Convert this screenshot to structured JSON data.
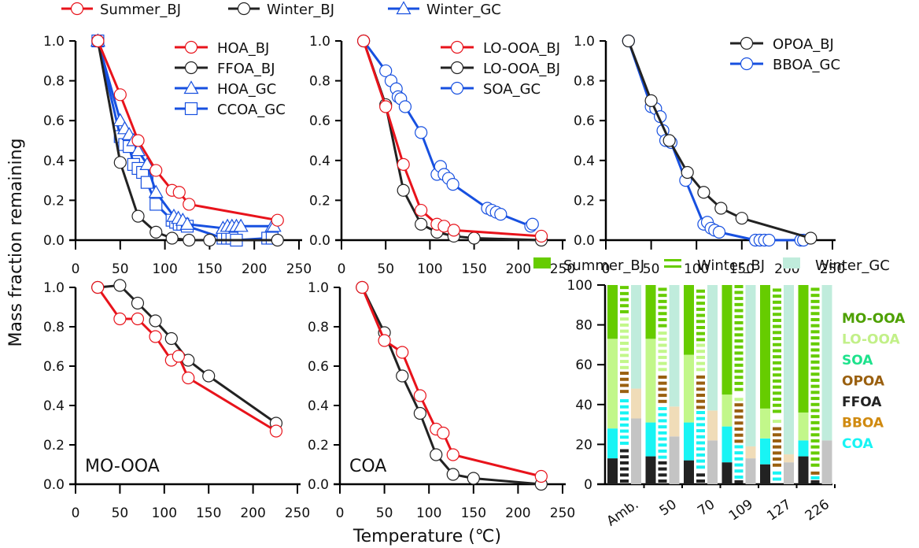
{
  "chart_data": {
    "type": "line",
    "ylabel": "Mass fraction remaining",
    "xlabel": "Temperature (℃)",
    "top_legend": [
      {
        "name": "Summer_BJ",
        "color": "#e8131b",
        "marker": "circle"
      },
      {
        "name": "Winter_BJ",
        "color": "#222222",
        "marker": "circle"
      },
      {
        "name": "Winter_GC",
        "color": "#1750e0",
        "marker": "triangle"
      }
    ],
    "panels": [
      {
        "id": "p1",
        "label": "",
        "xlim": [
          0,
          250
        ],
        "ylim": [
          0,
          1
        ],
        "xticks": [
          0,
          50,
          100,
          150,
          200,
          250
        ],
        "yticks": [
          "0.0",
          "0.2",
          "0.4",
          "0.6",
          "0.8",
          "1.0"
        ],
        "legend": "top-right",
        "series": [
          {
            "name": "HOA_BJ",
            "color": "#e8131b",
            "marker": "circle",
            "x": [
              25,
              50,
              70,
              90,
              108,
              116,
              127,
              226
            ],
            "y": [
              1.0,
              0.73,
              0.5,
              0.35,
              0.25,
              0.24,
              0.18,
              0.1
            ]
          },
          {
            "name": "FFOA_BJ",
            "color": "#222222",
            "marker": "circle",
            "x": [
              25,
              50,
              70,
              90,
              108,
              127,
              150,
              226
            ],
            "y": [
              1.0,
              0.39,
              0.12,
              0.04,
              0.01,
              0.0,
              0.0,
              0.0
            ]
          },
          {
            "name": "HOA_GC",
            "color": "#1750e0",
            "marker": "triangle",
            "x": [
              25,
              50,
              55,
              60,
              65,
              70,
              80,
              90,
              110,
              115,
              120,
              125,
              165,
              170,
              175,
              180,
              185,
              220,
              222
            ],
            "y": [
              1.0,
              0.6,
              0.56,
              0.53,
              0.5,
              0.45,
              0.38,
              0.24,
              0.12,
              0.11,
              0.1,
              0.08,
              0.06,
              0.07,
              0.07,
              0.07,
              0.07,
              0.07,
              0.07
            ]
          },
          {
            "name": "CCOA_GC",
            "color": "#1750e0",
            "marker": "square",
            "x": [
              25,
              50,
              55,
              60,
              65,
              70,
              75,
              80,
              90,
              108,
              112,
              116,
              120,
              125,
              165,
              170,
              175,
              180,
              215,
              220
            ],
            "y": [
              1.0,
              0.52,
              0.48,
              0.47,
              0.38,
              0.36,
              0.34,
              0.29,
              0.18,
              0.1,
              0.09,
              0.08,
              0.08,
              0.07,
              0.01,
              0.01,
              0.01,
              0.0,
              0.01,
              0.01
            ]
          }
        ]
      },
      {
        "id": "p2",
        "label": "",
        "xlim": [
          0,
          250
        ],
        "ylim": [
          0,
          1
        ],
        "xticks": [
          0,
          50,
          100,
          150,
          200,
          250
        ],
        "yticks": [
          "0.0",
          "0.2",
          "0.4",
          "0.6",
          "0.8",
          "1.0"
        ],
        "legend": "top-right",
        "series": [
          {
            "name": "LO-OOA_BJ",
            "color": "#e8131b",
            "marker": "circle",
            "x": [
              25,
              50,
              70,
              90,
              108,
              116,
              127,
              226
            ],
            "y": [
              1.0,
              0.67,
              0.38,
              0.15,
              0.08,
              0.07,
              0.05,
              0.02
            ]
          },
          {
            "name": "LO-OOA_BJ",
            "color": "#222222",
            "marker": "circle",
            "x": [
              25,
              50,
              70,
              90,
              108,
              127,
              150,
              226
            ],
            "y": [
              1.0,
              0.68,
              0.25,
              0.08,
              0.04,
              0.02,
              0.01,
              0.0
            ]
          },
          {
            "name": "SOA_GC",
            "color": "#1750e0",
            "marker": "circle",
            "x": [
              25,
              50,
              56,
              62,
              64,
              67,
              72,
              90,
              108,
              112,
              116,
              121,
              126,
              165,
              170,
              175,
              180,
              214,
              216
            ],
            "y": [
              1.0,
              0.85,
              0.8,
              0.76,
              0.72,
              0.71,
              0.67,
              0.54,
              0.33,
              0.37,
              0.33,
              0.31,
              0.28,
              0.16,
              0.15,
              0.14,
              0.13,
              0.07,
              0.08
            ]
          }
        ]
      },
      {
        "id": "p3",
        "label": "",
        "xlim": [
          0,
          250
        ],
        "ylim": [
          0,
          1
        ],
        "xticks": [
          0,
          50,
          100,
          150,
          200,
          250
        ],
        "yticks": [
          "0.0",
          "0.2",
          "0.4",
          "0.6",
          "0.8",
          "1.0"
        ],
        "legend": "top-right",
        "series": [
          {
            "name": "OPOA_BJ",
            "color": "#222222",
            "marker": "circle",
            "x": [
              25,
              50,
              70,
              90,
              108,
              127,
              150,
              226
            ],
            "y": [
              1.0,
              0.7,
              0.5,
              0.34,
              0.24,
              0.16,
              0.11,
              0.01
            ]
          },
          {
            "name": "BBOA_GC",
            "color": "#1750e0",
            "marker": "circle",
            "x": [
              25,
              50,
              55,
              60,
              63,
              66,
              72,
              88,
              108,
              112,
              116,
              120,
              125,
              165,
              170,
              175,
              180,
              215,
              218
            ],
            "y": [
              1.0,
              0.67,
              0.66,
              0.62,
              0.55,
              0.5,
              0.49,
              0.3,
              0.08,
              0.09,
              0.06,
              0.05,
              0.04,
              0.0,
              0.0,
              0.0,
              0.0,
              0.0,
              0.0
            ]
          }
        ]
      },
      {
        "id": "p4",
        "label": "MO-OOA",
        "xlim": [
          0,
          250
        ],
        "ylim": [
          0,
          1
        ],
        "xticks": [
          0,
          50,
          100,
          150,
          200,
          250
        ],
        "yticks": [
          "0.0",
          "0.2",
          "0.4",
          "0.6",
          "0.8",
          "1.0"
        ],
        "legend": "none",
        "series": [
          {
            "name": "MO-OOA_Summer_BJ",
            "color": "#e8131b",
            "marker": "circle",
            "x": [
              25,
              50,
              70,
              90,
              108,
              116,
              127,
              226
            ],
            "y": [
              1.0,
              0.84,
              0.84,
              0.75,
              0.63,
              0.65,
              0.54,
              0.27
            ]
          },
          {
            "name": "MO-OOA_Winter_BJ",
            "color": "#222222",
            "marker": "circle",
            "x": [
              25,
              50,
              70,
              90,
              108,
              127,
              150,
              226
            ],
            "y": [
              1.0,
              1.01,
              0.92,
              0.83,
              0.74,
              0.63,
              0.55,
              0.31
            ]
          }
        ]
      },
      {
        "id": "p5",
        "label": "COA",
        "xlim": [
          0,
          250
        ],
        "ylim": [
          0,
          1
        ],
        "xticks": [
          0,
          50,
          100,
          150,
          200,
          250
        ],
        "yticks": [
          "0.0",
          "0.2",
          "0.4",
          "0.6",
          "0.8",
          "1.0"
        ],
        "legend": "none",
        "series": [
          {
            "name": "COA_Summer_BJ",
            "color": "#e8131b",
            "marker": "circle",
            "x": [
              25,
              50,
              70,
              90,
              108,
              116,
              127,
              226
            ],
            "y": [
              1.0,
              0.73,
              0.67,
              0.45,
              0.28,
              0.26,
              0.15,
              0.04
            ]
          },
          {
            "name": "COA_Winter_BJ",
            "color": "#222222",
            "marker": "circle",
            "x": [
              25,
              50,
              70,
              90,
              108,
              127,
              150,
              226
            ],
            "y": [
              1.0,
              0.77,
              0.55,
              0.36,
              0.15,
              0.05,
              0.03,
              0.0
            ]
          }
        ]
      }
    ],
    "stacked_bar": {
      "type": "bar",
      "stacked": true,
      "ylim": [
        0,
        100
      ],
      "yticks": [
        0,
        20,
        40,
        60,
        80,
        100
      ],
      "categories": [
        "Amb.",
        "50",
        "70",
        "109",
        "127",
        "226"
      ],
      "groups": [
        {
          "name": "Summer_BJ",
          "style": "solid",
          "legend_color": "#66cc00"
        },
        {
          "name": "Winter_BJ",
          "style": "striped",
          "legend_color": "#66cc00"
        },
        {
          "name": "Winter_GC",
          "style": "pale",
          "legend_color": "#c0ecdc"
        }
      ],
      "component_legend": [
        {
          "name": "MO-OOA",
          "color": "#4da000"
        },
        {
          "name": "LO-OOA",
          "color": "#c2f088"
        },
        {
          "name": "SOA",
          "color": "#1de28c"
        },
        {
          "name": "OPOA",
          "color": "#9a6010"
        },
        {
          "name": "FFOA",
          "color": "#222222"
        },
        {
          "name": "BBOA",
          "color": "#d08a10"
        },
        {
          "name": "COA",
          "color": "#18f4f4"
        }
      ],
      "summer_bj": [
        {
          "HOA": 13,
          "COA": 15,
          "LO-OOA": 45,
          "MO-OOA": 27
        },
        {
          "HOA": 14,
          "COA": 17,
          "LO-OOA": 42,
          "MO-OOA": 27
        },
        {
          "HOA": 12,
          "COA": 19,
          "LO-OOA": 34,
          "MO-OOA": 35
        },
        {
          "HOA": 11,
          "COA": 18,
          "LO-OOA": 16,
          "MO-OOA": 55
        },
        {
          "HOA": 10,
          "COA": 13,
          "LO-OOA": 15,
          "MO-OOA": 62
        },
        {
          "HOA": 14,
          "COA": 8,
          "LO-OOA": 14,
          "MO-OOA": 64
        }
      ],
      "winter_bj": [
        {
          "FFOA": 19,
          "COA": 26,
          "OPOA": 12,
          "LO-OOA": 28,
          "MO-OOA": 15
        },
        {
          "FFOA": 12,
          "COA": 28,
          "OPOA": 16,
          "LO-OOA": 22,
          "MO-OOA": 22
        },
        {
          "FFOA": 7,
          "COA": 30,
          "OPOA": 19,
          "LO-OOA": 15,
          "MO-OOA": 29
        },
        {
          "FFOA": 2,
          "COA": 18,
          "OPOA": 21,
          "LO-OOA": 5,
          "MO-OOA": 54
        },
        {
          "FFOA": 1,
          "COA": 7,
          "OPOA": 22,
          "LO-OOA": 5,
          "MO-OOA": 65
        },
        {
          "FFOA": 2,
          "COA": 2,
          "OPOA": 4,
          "LO-OOA": 0,
          "MO-OOA": 92
        }
      ],
      "winter_gc": [
        {
          "HOA": 33,
          "BBOA": 15,
          "SOA": 52
        },
        {
          "HOA": 24,
          "BBOA": 15,
          "SOA": 61
        },
        {
          "HOA": 22,
          "BBOA": 15,
          "SOA": 63
        },
        {
          "HOA": 13,
          "BBOA": 6,
          "SOA": 81
        },
        {
          "HOA": 11,
          "BBOA": 4,
          "SOA": 85
        },
        {
          "HOA": 22,
          "BBOA": 0,
          "SOA": 78
        }
      ]
    }
  }
}
